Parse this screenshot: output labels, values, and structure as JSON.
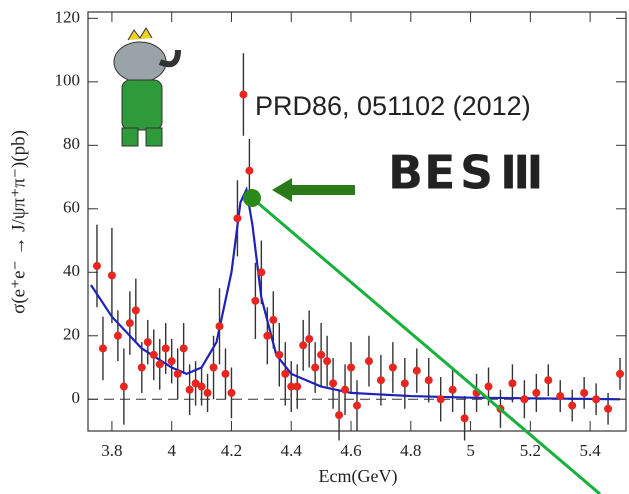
{
  "chart_data": {
    "type": "scatter",
    "annotation": "PRD86, 051102 (2012)",
    "logo": [
      "B",
      "E",
      "S",
      "Ⅲ"
    ],
    "logo_colors": [
      "#1a4fd0",
      "#e0202a",
      "#16b03a",
      "#111111"
    ],
    "x_label": "Ecm(GeV)",
    "y_label": "σ(e⁺e⁻ → J/ψπ⁺π⁻)(pb)",
    "xlim": [
      3.72,
      5.52
    ],
    "ylim": [
      -10,
      122
    ],
    "xticks": [
      3.8,
      4,
      4.2,
      4.4,
      4.6,
      4.8,
      5,
      5.2,
      5.4
    ],
    "yticks": [
      0,
      20,
      40,
      60,
      80,
      100,
      120
    ],
    "reference_line": 0,
    "points": {
      "color": "#e8251f",
      "error_color": "#333333",
      "x": [
        3.75,
        3.77,
        3.8,
        3.82,
        3.84,
        3.86,
        3.88,
        3.9,
        3.92,
        3.94,
        3.96,
        3.98,
        4.0,
        4.02,
        4.04,
        4.06,
        4.08,
        4.1,
        4.12,
        4.14,
        4.16,
        4.18,
        4.2,
        4.22,
        4.24,
        4.26,
        4.28,
        4.3,
        4.32,
        4.34,
        4.36,
        4.38,
        4.4,
        4.42,
        4.44,
        4.46,
        4.48,
        4.5,
        4.52,
        4.54,
        4.56,
        4.58,
        4.6,
        4.62,
        4.66,
        4.7,
        4.74,
        4.78,
        4.82,
        4.86,
        4.9,
        4.94,
        4.98,
        5.02,
        5.06,
        5.1,
        5.14,
        5.18,
        5.22,
        5.26,
        5.3,
        5.34,
        5.38,
        5.42,
        5.46,
        5.5
      ],
      "values": [
        42,
        16,
        39,
        20,
        4,
        24,
        28,
        10,
        18,
        14,
        11,
        16,
        12,
        8,
        16,
        3,
        5,
        4,
        2,
        10,
        23,
        8,
        2,
        57,
        96,
        72,
        31,
        40,
        20,
        25,
        14,
        8,
        4,
        4,
        17,
        19,
        10,
        14,
        12,
        5,
        -5,
        3,
        10,
        -2,
        12,
        6,
        10,
        5,
        9,
        6,
        0,
        3,
        -6,
        2,
        4,
        -3,
        5,
        0,
        2,
        6,
        1,
        -2,
        2,
        0,
        -3,
        8
      ],
      "errors": [
        13,
        10,
        15,
        8,
        12,
        10,
        10,
        8,
        7,
        8,
        8,
        8,
        7,
        8,
        8,
        8,
        7,
        6,
        6,
        10,
        12,
        8,
        8,
        12,
        13,
        10,
        12,
        10,
        9,
        9,
        10,
        10,
        8,
        7,
        8,
        9,
        8,
        10,
        8,
        8,
        8,
        8,
        8,
        8,
        8,
        8,
        8,
        8,
        7,
        7,
        7,
        7,
        7,
        6,
        6,
        6,
        6,
        6,
        6,
        5,
        5,
        5,
        5,
        5,
        5,
        5
      ]
    },
    "fit": {
      "color": "#1f22b8",
      "x": [
        3.73,
        3.8,
        3.9,
        4.0,
        4.05,
        4.1,
        4.15,
        4.2,
        4.23,
        4.25,
        4.27,
        4.3,
        4.35,
        4.4,
        4.5,
        4.6,
        4.8,
        5.0,
        5.5
      ],
      "values": [
        36,
        26,
        16,
        10,
        8,
        10,
        18,
        40,
        62,
        66,
        55,
        32,
        14,
        8,
        4,
        2,
        1,
        0.5,
        0
      ]
    }
  }
}
